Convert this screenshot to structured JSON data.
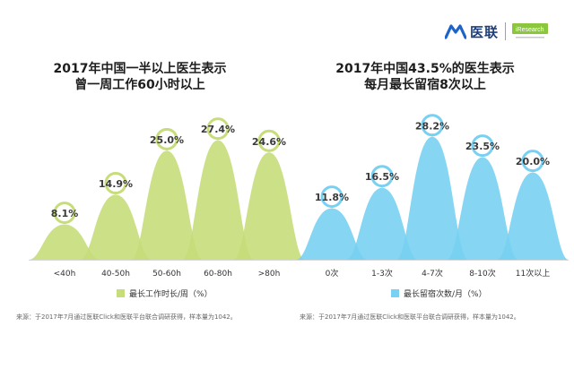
{
  "brand": {
    "name": "医联",
    "second_logo": "iResearch"
  },
  "colors": {
    "left_series": "#c7dd7a",
    "right_series": "#78d0f2",
    "marker_fill": "#ffffff"
  },
  "chart_data": [
    {
      "type": "area",
      "title_line1": "2017年中国一半以上医生表示",
      "title_line2": "曾一周工作60小时以上",
      "categories": [
        "<40h",
        "40-50h",
        "50-60h",
        "60-80h",
        ">80h"
      ],
      "values": [
        8.1,
        14.9,
        25.0,
        27.4,
        24.6
      ],
      "value_labels": [
        "8.1%",
        "14.9%",
        "25.0%",
        "27.4%",
        "24.6%"
      ],
      "series": [
        {
          "name": "最长工作时长/周（%）",
          "values": [
            8.1,
            14.9,
            25.0,
            27.4,
            24.6
          ]
        }
      ],
      "legend": "最长工作时长/周（%）",
      "source": "来源：于2017年7月通过医联Click和医联平台联合调研获得，样本量为1042。",
      "ylim": [
        0,
        30
      ],
      "grid": false,
      "legend_position": "bottom"
    },
    {
      "type": "area",
      "title_line1": "2017年中国43.5%的医生表示",
      "title_line2": "每月最长留宿8次以上",
      "categories": [
        "0次",
        "1-3次",
        "4-7次",
        "8-10次",
        "11次以上"
      ],
      "values": [
        11.8,
        16.5,
        28.2,
        23.5,
        20.0
      ],
      "value_labels": [
        "11.8%",
        "16.5%",
        "28.2%",
        "23.5%",
        "20.0%"
      ],
      "series": [
        {
          "name": "最长留宿次数/月（%）",
          "values": [
            11.8,
            16.5,
            28.2,
            23.5,
            20.0
          ]
        }
      ],
      "legend": "最长留宿次数/月（%）",
      "source": "来源：于2017年7月通过医联Click和医联平台联合调研获得，样本量为1042。",
      "ylim": [
        0,
        30
      ],
      "grid": false,
      "legend_position": "bottom"
    }
  ]
}
